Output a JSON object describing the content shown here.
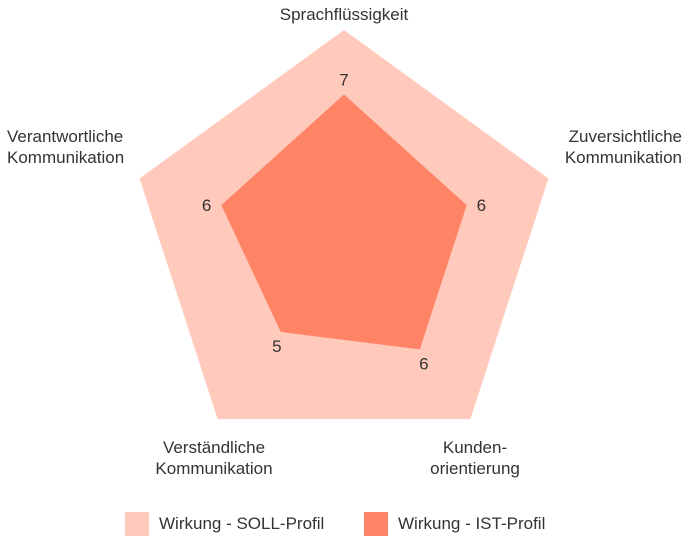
{
  "chart_data": {
    "type": "radar",
    "title": "",
    "axes": [
      {
        "label_lines": [
          "Sprachflüssigkeit"
        ]
      },
      {
        "label_lines": [
          "Zuversichtliche",
          "Kommunikation"
        ]
      },
      {
        "label_lines": [
          "Kunden-",
          "orientierung"
        ]
      },
      {
        "label_lines": [
          "Verständliche",
          "Kommunikation"
        ]
      },
      {
        "label_lines": [
          "Verantwortliche",
          "Kommunikation"
        ]
      }
    ],
    "range": [
      0,
      10
    ],
    "series": [
      {
        "name": "Wirkung - SOLL-Profil",
        "values": [
          10,
          10,
          10,
          10,
          10
        ],
        "color": "#ffc9bb",
        "show_labels": false
      },
      {
        "name": "Wirkung - IST-Profil",
        "values": [
          7,
          6,
          6,
          5,
          6
        ],
        "color": "#ff8466",
        "show_labels": true
      }
    ],
    "legend_position": "bottom"
  }
}
